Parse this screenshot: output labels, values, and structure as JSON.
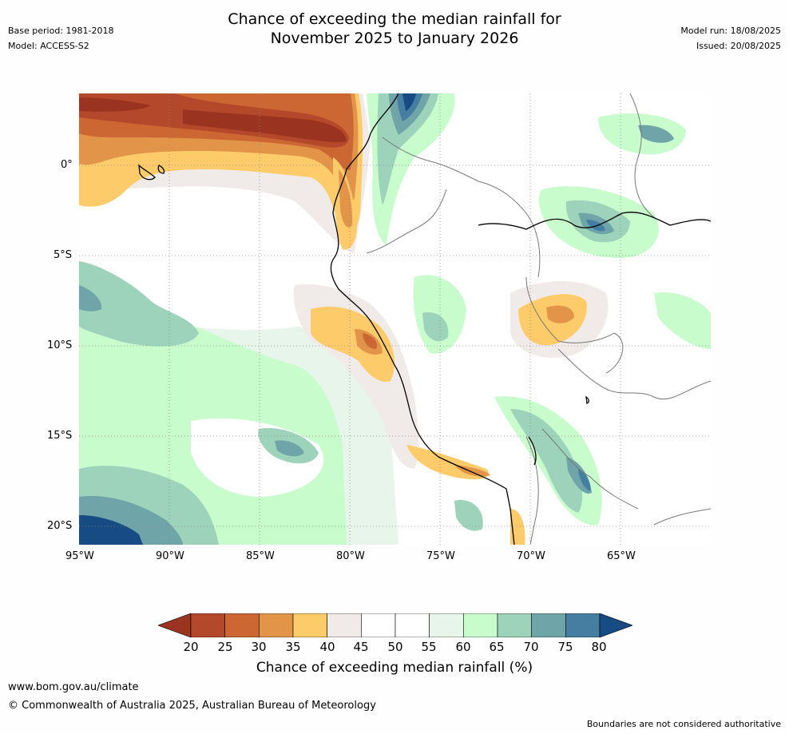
{
  "header": {
    "title_line1": "Chance of exceeding the median rainfall for",
    "title_line2": "November 2025 to January 2026",
    "base_period": "Base period: 1981-2018",
    "model": "Model: ACCESS-S2",
    "model_run": "Model run: 18/08/2025",
    "issued": "Issued: 20/08/2025"
  },
  "map": {
    "lat_labels": [
      "0°",
      "5°S",
      "10°S",
      "15°S",
      "20°S"
    ],
    "lon_labels": [
      "95°W",
      "90°W",
      "85°W",
      "80°W",
      "75°W",
      "70°W",
      "65°W"
    ],
    "lat_values": [
      0,
      -5,
      -10,
      -15,
      -20
    ],
    "lon_values": [
      -95,
      -90,
      -85,
      -80,
      -75,
      -70,
      -65
    ]
  },
  "colorbar": {
    "title": "Chance of exceeding median rainfall (%)",
    "ticks": [
      "20",
      "25",
      "30",
      "35",
      "40",
      "45",
      "50",
      "55",
      "60",
      "65",
      "70",
      "75",
      "80"
    ],
    "colors": [
      "#9a3420",
      "#b4482a",
      "#cc6733",
      "#e29448",
      "#fdcb6a",
      "#f0ebe8",
      "#ffffff",
      "#ffffff",
      "#e8f5ea",
      "#c8fccd",
      "#9dd2bb",
      "#6fa5a9",
      "#457ea1",
      "#164b83"
    ]
  },
  "footer": {
    "url": "www.bom.gov.au/climate",
    "copyright": "© Commonwealth of Australia 2025, Australian Bureau of Meteorology",
    "disclaimer": "Boundaries are not considered authoritative"
  }
}
